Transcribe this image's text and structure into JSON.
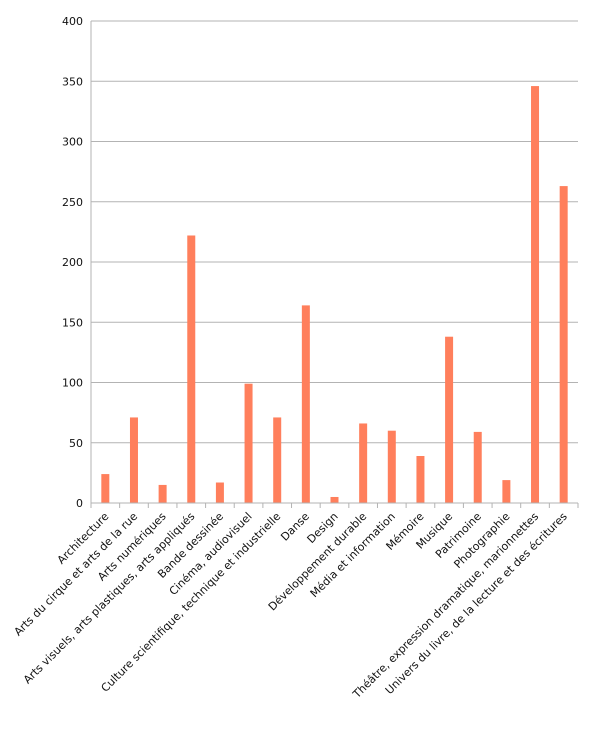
{
  "chart_data": {
    "type": "bar",
    "title": "",
    "xlabel": "",
    "ylabel": "",
    "ylim": [
      0,
      400
    ],
    "yticks": [
      0,
      50,
      100,
      150,
      200,
      250,
      300,
      350,
      400
    ],
    "grid": true,
    "legend": "none",
    "bar_color": "#ff7f5c",
    "categories": [
      "Architecture",
      "Arts du cirque et arts de la rue",
      "Arts numériques",
      "Arts visuels, arts plastiques, arts appliqués",
      "Bande dessinée",
      "Cinéma, audiovisuel",
      "Culture scientifique, technique et industrielle",
      "Danse",
      "Design",
      "Développement durable",
      "Média et information",
      "Mémoire",
      "Musique",
      "Patrimoine",
      "Photographie",
      "Théâtre, expression dramatique, marionnettes",
      "Univers du livre, de la lecture et des écritures"
    ],
    "values": [
      24,
      71,
      15,
      222,
      17,
      99,
      71,
      164,
      5,
      66,
      60,
      39,
      138,
      59,
      19,
      346,
      263
    ]
  }
}
